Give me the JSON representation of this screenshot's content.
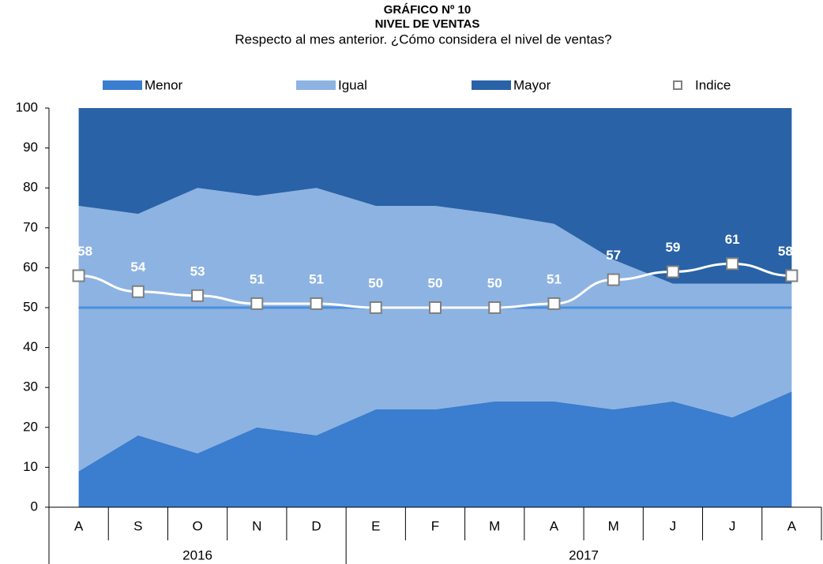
{
  "chart_data": {
    "type": "area",
    "stacked": true,
    "title": [
      "GRÁFICO Nº 10",
      "NIVEL DE VENTAS"
    ],
    "subtitle": "Respecto al mes anterior. ¿Cómo considera el nivel de ventas?",
    "categories": [
      "A",
      "S",
      "O",
      "N",
      "D",
      "E",
      "F",
      "M",
      "A",
      "M",
      "J",
      "J",
      "A"
    ],
    "groups": [
      {
        "name": "2016",
        "count": 5
      },
      {
        "name": "2017",
        "count": 8
      }
    ],
    "series": [
      {
        "name": "Menor",
        "color": "#3b7dcf",
        "values": [
          9,
          18,
          13.5,
          20,
          18,
          24.5,
          24.5,
          26.5,
          26.5,
          24.5,
          26.5,
          22.5,
          29
        ]
      },
      {
        "name": "Igual",
        "color": "#8db3e2",
        "values": [
          66.5,
          55.5,
          66.5,
          58,
          62,
          51,
          51,
          47,
          44.5,
          37.5,
          29.5,
          33.5,
          27
        ]
      },
      {
        "name": "Mayor",
        "color": "#2962a6",
        "values": [
          24.5,
          26.5,
          20,
          22,
          20,
          24.5,
          24.5,
          26.5,
          29,
          38,
          44,
          44,
          44
        ]
      }
    ],
    "index": {
      "name": "Indice",
      "color": "#ffffff",
      "marker_stroke": "#808080",
      "values": [
        58,
        54,
        53,
        51,
        51,
        50,
        50,
        50,
        51,
        57,
        59,
        61,
        58
      ]
    },
    "reference_line": {
      "value": 50,
      "color": "#4a8fdb"
    },
    "ylim": [
      0,
      100
    ],
    "yticks": [
      0,
      10,
      20,
      30,
      40,
      50,
      60,
      70,
      80,
      90,
      100
    ],
    "grid": false
  }
}
